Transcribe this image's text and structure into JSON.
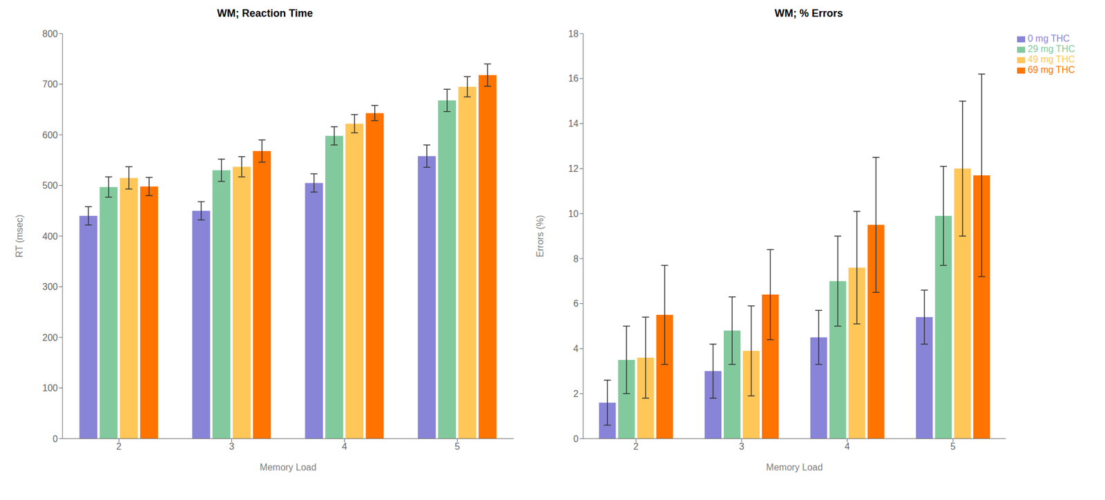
{
  "chart_data": [
    {
      "type": "bar",
      "title": "WM; Reaction Time",
      "xlabel": "Memory Load",
      "ylabel": "RT (msec)",
      "categories": [
        "2",
        "3",
        "4",
        "5"
      ],
      "series": [
        {
          "name": "0 mg THC",
          "color": "#8884d8",
          "values": [
            440,
            450,
            505,
            558
          ],
          "errors": [
            18,
            18,
            18,
            22
          ]
        },
        {
          "name": "29 mg THC",
          "color": "#82ca9d",
          "values": [
            497,
            530,
            598,
            668
          ],
          "errors": [
            20,
            22,
            18,
            22
          ]
        },
        {
          "name": "49 mg THC",
          "color": "#ffc658",
          "values": [
            515,
            537,
            622,
            695
          ],
          "errors": [
            22,
            20,
            18,
            20
          ]
        },
        {
          "name": "69 mg THC",
          "color": "#ff7300",
          "values": [
            498,
            568,
            643,
            718
          ],
          "errors": [
            18,
            22,
            15,
            22
          ]
        }
      ],
      "ylim": [
        0,
        800
      ],
      "yticks": [
        0,
        100,
        200,
        300,
        400,
        500,
        600,
        700,
        800
      ],
      "grid": false
    },
    {
      "type": "bar",
      "title": "WM; % Errors",
      "xlabel": "Memory Load",
      "ylabel": "Errors (%)",
      "categories": [
        "2",
        "3",
        "4",
        "5"
      ],
      "series": [
        {
          "name": "0 mg THC",
          "color": "#8884d8",
          "values": [
            1.6,
            3.0,
            4.5,
            5.4
          ],
          "errors": [
            1.0,
            1.2,
            1.2,
            1.2
          ]
        },
        {
          "name": "29 mg THC",
          "color": "#82ca9d",
          "values": [
            3.5,
            4.8,
            7.0,
            9.9
          ],
          "errors": [
            1.5,
            1.5,
            2.0,
            2.2
          ]
        },
        {
          "name": "49 mg THC",
          "color": "#ffc658",
          "values": [
            3.6,
            3.9,
            7.6,
            12.0
          ],
          "errors": [
            1.8,
            2.0,
            2.5,
            3.0
          ]
        },
        {
          "name": "69 mg THC",
          "color": "#ff7300",
          "values": [
            5.5,
            6.4,
            9.5,
            11.7
          ],
          "errors": [
            2.2,
            2.0,
            3.0,
            4.5
          ]
        }
      ],
      "ylim": [
        0,
        18
      ],
      "yticks": [
        0,
        2,
        4,
        6,
        8,
        10,
        12,
        14,
        16,
        18
      ],
      "grid": false,
      "legend": "right"
    }
  ]
}
